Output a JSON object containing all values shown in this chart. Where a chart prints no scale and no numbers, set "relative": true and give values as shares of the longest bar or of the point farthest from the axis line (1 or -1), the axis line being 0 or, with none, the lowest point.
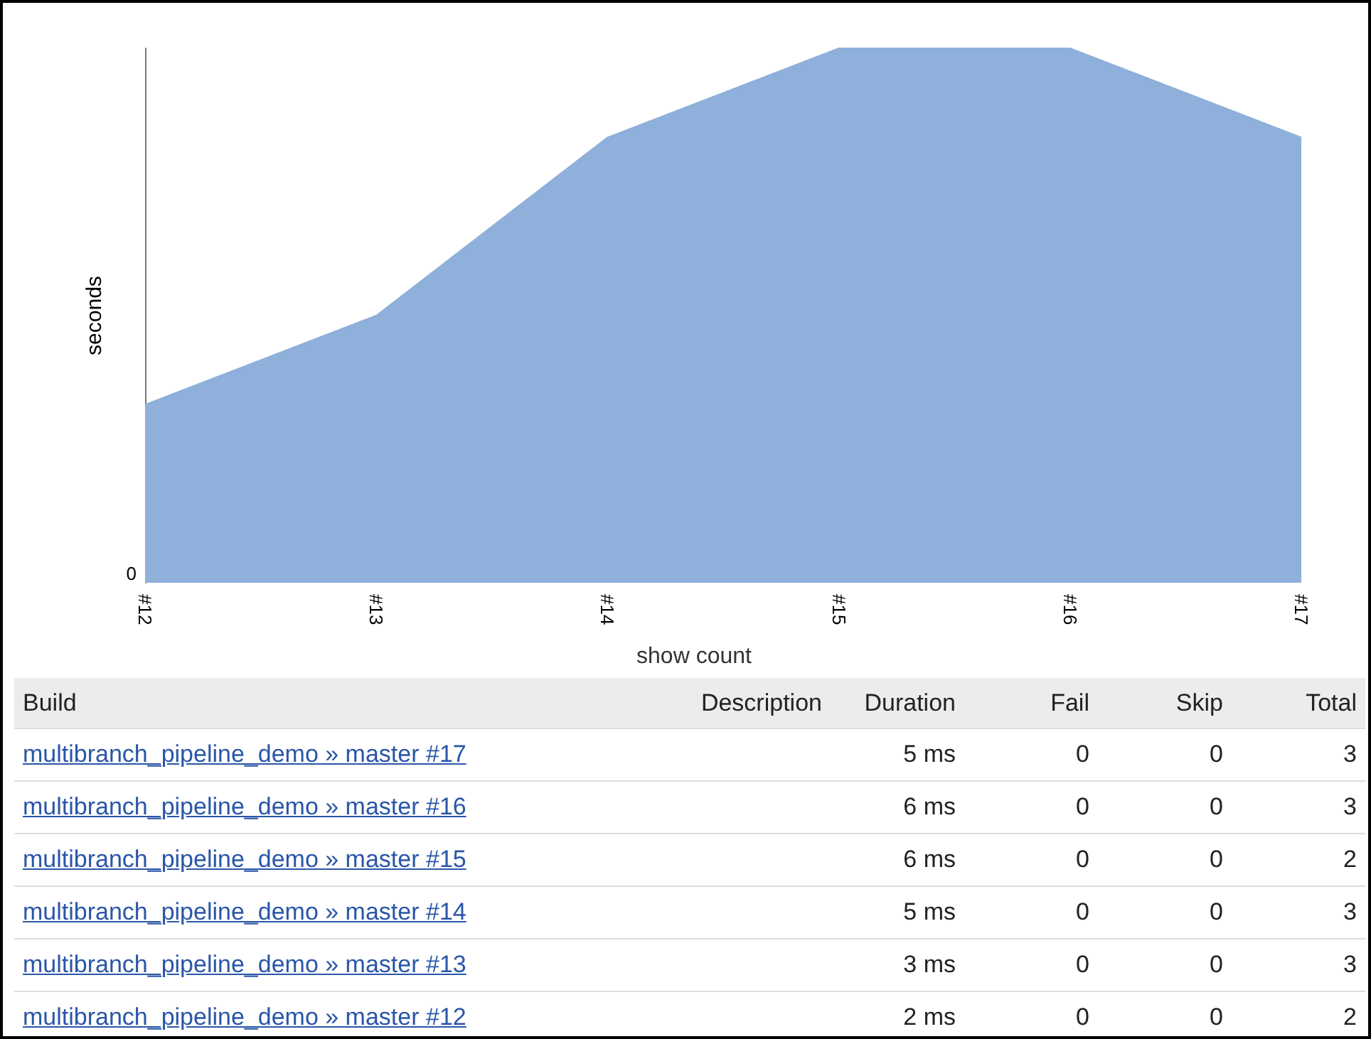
{
  "chart_data": [
    {
      "type": "area",
      "relative": true,
      "ylabel": "seconds",
      "categories": [
        "#12",
        "#13",
        "#14",
        "#15",
        "#16",
        "#17"
      ],
      "values": [
        0.3333,
        0.5,
        0.8333,
        1,
        1,
        0.8333
      ],
      "color": "#8eb0da",
      "annotations": [
        "0",
        "show count"
      ]
    },
    {
      "type": "other",
      "data_labels": true,
      "ylabel": "Build",
      "categories": [
        "multibranch_pipeline_demo » master #17",
        "multibranch_pipeline_demo » master #16",
        "multibranch_pipeline_demo » master #15",
        "multibranch_pipeline_demo » master #14",
        "multibranch_pipeline_demo » master #13",
        "multibranch_pipeline_demo » master #12"
      ],
      "series": [
        {
          "name": "Description",
          "values": [
            null,
            null,
            null,
            null,
            null,
            null
          ]
        },
        {
          "name": "Duration",
          "values": [
            5,
            6,
            6,
            5,
            3,
            2
          ],
          "value_labels": [
            "5 ms",
            "6 ms",
            "6 ms",
            "5 ms",
            "3 ms",
            "2 ms"
          ]
        },
        {
          "name": "Fail",
          "values": [
            0,
            0,
            0,
            0,
            0,
            0
          ]
        },
        {
          "name": "Skip",
          "values": [
            0,
            0,
            0,
            0,
            0,
            0
          ]
        },
        {
          "name": "Total",
          "values": [
            3,
            3,
            2,
            3,
            3,
            2
          ]
        }
      ]
    }
  ]
}
